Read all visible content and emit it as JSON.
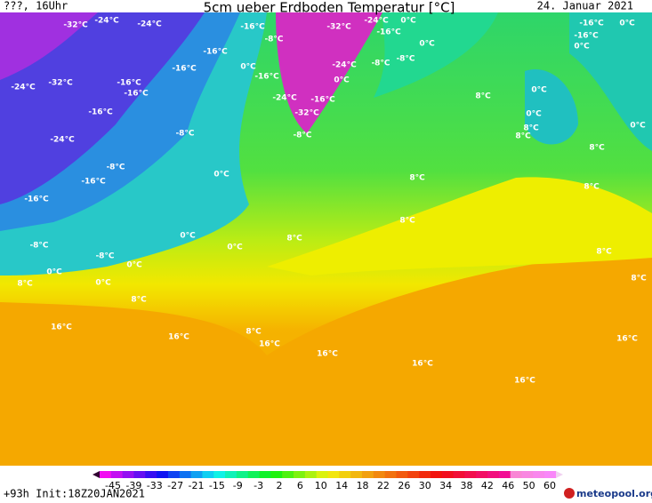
{
  "header": {
    "left": "???, 16Uhr",
    "title": "5cm ueber Erdboden Temperatur [°C]",
    "date": "24. Januar 2021"
  },
  "map_labels": [
    "-32°C",
    "-24°C",
    "-24°C",
    "-16°C",
    "-8°C",
    "-32°C",
    "-24°C",
    "0°C",
    "-16°C",
    "0°C",
    "-16°C",
    "0°C",
    "-16°C",
    "0°C",
    "-16°C",
    "-16°C",
    "0°C",
    "-16°C",
    "-24°C",
    "-8°C",
    "-8°C",
    "-24°C",
    "-32°C",
    "-16°C",
    "-16°C",
    "0°C",
    "0°C",
    "8°C",
    "-24°C",
    "-16°C",
    "-32°C",
    "-16°C",
    "0°C",
    "8°C",
    "0°C",
    "-8°C",
    "-8°C",
    "-24°C",
    "8°C",
    "8°C",
    "-8°C",
    "0°C",
    "-16°C",
    "8°C",
    "8°C",
    "-16°C",
    "8°C",
    "8°C",
    "0°C",
    "0°C",
    "-8°C",
    "-8°C",
    "0°C",
    "8°C",
    "0°C",
    "0°C",
    "8°C",
    "8°C",
    "8°C",
    "16°C",
    "16°C",
    "8°C",
    "16°C",
    "16°C",
    "16°C",
    "16°C",
    "16°C"
  ],
  "colorbar": {
    "ticks": [
      -45,
      -39,
      -33,
      -27,
      -21,
      -15,
      -9,
      -3,
      2,
      6,
      10,
      14,
      18,
      22,
      26,
      30,
      34,
      38,
      42,
      46,
      50,
      60
    ]
  },
  "footer": {
    "left": "+93h Init:18Z20JAN2021",
    "logo": "meteopool.org"
  }
}
